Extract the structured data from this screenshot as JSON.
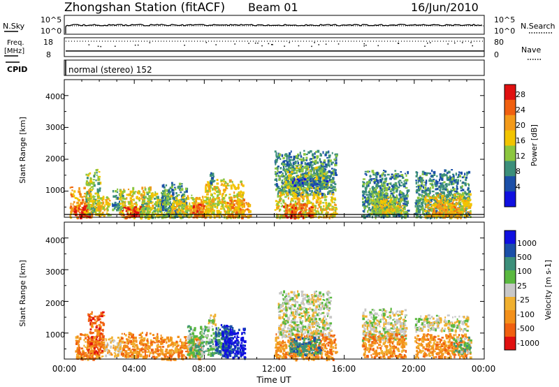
{
  "header": {
    "station": "Zhongshan Station (fitACF)",
    "beam": "Beam 01",
    "date": "16/Jun/2010"
  },
  "noise_panel": {
    "left_label": "N.Sky",
    "right_label": "N.Search",
    "ticks_left": [
      "10^5",
      "10^0"
    ],
    "ticks_right": [
      "10^5",
      "10^0"
    ]
  },
  "freq_panel": {
    "left_label_1": "Freq.",
    "left_label_2": "[MHz]",
    "right_label": "Nave",
    "ticks_left": [
      "18",
      "8"
    ],
    "ticks_right": [
      "80",
      "0"
    ]
  },
  "cpid": {
    "label": "CPID",
    "value": "normal (stereo) 152"
  },
  "axes": {
    "ylabel": "Slant Range [km]",
    "xlabel": "Time UT",
    "yticks": [
      "4000",
      "3000",
      "2000",
      "1000"
    ],
    "xticks": [
      "00:00",
      "04:00",
      "08:00",
      "12:00",
      "16:00",
      "20:00",
      "00:00"
    ]
  },
  "colors": {
    "power": [
      "#1010e0",
      "#1b4fa8",
      "#3c8f7a",
      "#8cc63f",
      "#f2c400",
      "#f39a1a",
      "#f06010",
      "#e01010"
    ],
    "velocity": [
      "#e01010",
      "#f06010",
      "#f3901a",
      "#f0b030",
      "#c8c8c8",
      "#5ab840",
      "#3c8f7a",
      "#1b4fa8",
      "#1010e0"
    ]
  },
  "chart_data": [
    {
      "type": "heatmap",
      "title": "Power",
      "colorbar_label": "Power [dB]",
      "colorbar_ticks": [
        "28",
        "24",
        "20",
        "16",
        "12",
        "8",
        "4"
      ],
      "xlim_hours": [
        0,
        24
      ],
      "ylim_km": [
        180,
        4500
      ],
      "regions": [
        {
          "t0": 0.3,
          "t1": 1.6,
          "r0": 200,
          "r1": 1150,
          "c": 5
        },
        {
          "t0": 0.5,
          "t1": 1.4,
          "r0": 200,
          "r1": 600,
          "c": 7
        },
        {
          "t0": 1.2,
          "t1": 2.0,
          "r0": 300,
          "r1": 1700,
          "c": 3
        },
        {
          "t0": 1.8,
          "t1": 2.6,
          "r0": 250,
          "r1": 900,
          "c": 4
        },
        {
          "t0": 2.7,
          "t1": 3.3,
          "r0": 350,
          "r1": 1100,
          "c": 2
        },
        {
          "t0": 3.1,
          "t1": 5.0,
          "r0": 200,
          "r1": 1150,
          "c": 4
        },
        {
          "t0": 3.3,
          "t1": 4.4,
          "r0": 200,
          "r1": 550,
          "c": 7
        },
        {
          "t0": 4.3,
          "t1": 6.0,
          "r0": 200,
          "r1": 1000,
          "c": 3
        },
        {
          "t0": 5.5,
          "t1": 7.0,
          "r0": 200,
          "r1": 1300,
          "c": 2
        },
        {
          "t0": 6.0,
          "t1": 8.3,
          "r0": 200,
          "r1": 900,
          "c": 4
        },
        {
          "t0": 7.3,
          "t1": 8.1,
          "r0": 200,
          "r1": 650,
          "c": 6
        },
        {
          "t0": 8.0,
          "t1": 10.2,
          "r0": 200,
          "r1": 1400,
          "c": 4
        },
        {
          "t0": 9.3,
          "t1": 10.6,
          "r0": 200,
          "r1": 800,
          "c": 5
        },
        {
          "t0": 8.3,
          "t1": 8.5,
          "r0": 1250,
          "r1": 1650,
          "c": 2
        },
        {
          "t0": 12.0,
          "t1": 15.5,
          "r0": 900,
          "r1": 2300,
          "c": 2
        },
        {
          "t0": 12.5,
          "t1": 15.0,
          "r0": 1100,
          "r1": 1800,
          "c": 3
        },
        {
          "t0": 12.0,
          "t1": 15.5,
          "r0": 200,
          "r1": 1000,
          "c": 4
        },
        {
          "t0": 12.5,
          "t1": 14.2,
          "r0": 200,
          "r1": 650,
          "c": 6
        },
        {
          "t0": 13.0,
          "t1": 15.0,
          "r0": 1200,
          "r1": 1450,
          "c": 1
        },
        {
          "t0": 17.0,
          "t1": 19.6,
          "r0": 200,
          "r1": 1700,
          "c": 2
        },
        {
          "t0": 17.5,
          "t1": 19.0,
          "r0": 300,
          "r1": 1050,
          "c": 3
        },
        {
          "t0": 18.0,
          "t1": 19.3,
          "r0": 350,
          "r1": 800,
          "c": 4
        },
        {
          "t0": 20.0,
          "t1": 23.1,
          "r0": 200,
          "r1": 1700,
          "c": 2
        },
        {
          "t0": 20.5,
          "t1": 23.2,
          "r0": 200,
          "r1": 950,
          "c": 4
        },
        {
          "t0": 21.0,
          "t1": 22.5,
          "r0": 200,
          "r1": 650,
          "c": 5
        }
      ]
    },
    {
      "type": "heatmap",
      "title": "Velocity",
      "colorbar_label": "Velocity [m s-1]",
      "colorbar_ticks": [
        "1000",
        "500",
        "100",
        "25",
        "-25",
        "-100",
        "-500",
        "-1000"
      ],
      "xlim_hours": [
        0,
        24
      ],
      "ylim_km": [
        180,
        4500
      ],
      "regions": [
        {
          "t0": 0.6,
          "t1": 2.2,
          "r0": 200,
          "r1": 1000,
          "c": 2
        },
        {
          "t0": 1.3,
          "t1": 2.2,
          "r0": 400,
          "r1": 1700,
          "c": 1
        },
        {
          "t0": 2.2,
          "t1": 3.2,
          "r0": 300,
          "r1": 900,
          "c": 3
        },
        {
          "t0": 3.2,
          "t1": 5.5,
          "r0": 250,
          "r1": 1050,
          "c": 2
        },
        {
          "t0": 5.5,
          "t1": 7.8,
          "r0": 200,
          "r1": 950,
          "c": 2
        },
        {
          "t0": 7.0,
          "t1": 9.4,
          "r0": 300,
          "r1": 1250,
          "c": 5
        },
        {
          "t0": 8.6,
          "t1": 9.6,
          "r0": 400,
          "r1": 1300,
          "c": 7
        },
        {
          "t0": 9.0,
          "t1": 10.3,
          "r0": 250,
          "r1": 1200,
          "c": 8
        },
        {
          "t0": 8.2,
          "t1": 8.6,
          "r0": 1300,
          "r1": 1650,
          "c": 4
        },
        {
          "t0": 12.2,
          "t1": 15.2,
          "r0": 900,
          "r1": 2350,
          "c": 4
        },
        {
          "t0": 12.0,
          "t1": 15.5,
          "r0": 200,
          "r1": 1000,
          "c": 2
        },
        {
          "t0": 12.8,
          "t1": 14.6,
          "r0": 350,
          "r1": 900,
          "c": 6
        },
        {
          "t0": 17.0,
          "t1": 19.5,
          "r0": 800,
          "r1": 1800,
          "c": 4
        },
        {
          "t0": 17.0,
          "t1": 19.5,
          "r0": 250,
          "r1": 1000,
          "c": 2
        },
        {
          "t0": 20.0,
          "t1": 23.0,
          "r0": 1100,
          "r1": 1600,
          "c": 4
        },
        {
          "t0": 20.0,
          "t1": 23.2,
          "r0": 250,
          "r1": 1000,
          "c": 2
        },
        {
          "t0": 22.2,
          "t1": 23.2,
          "r0": 400,
          "r1": 900,
          "c": 5
        }
      ]
    }
  ]
}
